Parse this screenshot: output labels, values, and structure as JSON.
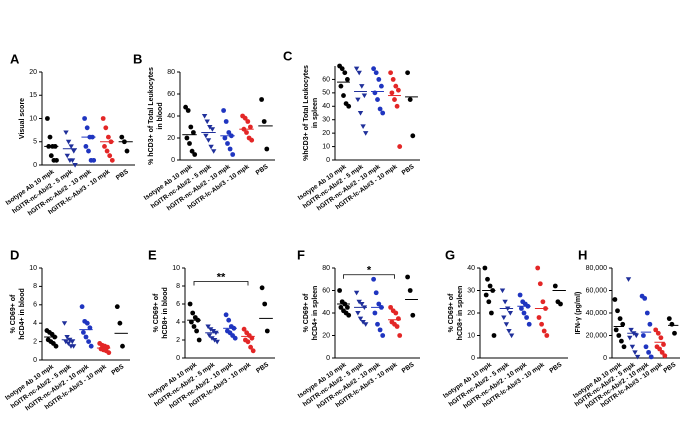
{
  "chart_data": [
    {
      "type": "dot",
      "label": "A",
      "ylabel": [
        "Visual score"
      ],
      "categories": [
        "Isotype Ab 10 mpk",
        "hGITR-nc-Ab#2 - 5 mpk",
        "hGITR-nc-Ab#2 - 10 mpk",
        "hGITR-lc-Ab#3 - 10 mpk",
        "PBS"
      ],
      "colors": [
        "#000000",
        "#1f2f9a",
        "#1f35c0",
        "#e32626",
        "#000000"
      ],
      "markers": [
        "circle",
        "triangle",
        "circle",
        "circle",
        "circle"
      ],
      "values": [
        [
          10,
          6,
          4,
          4,
          4,
          2,
          1,
          1
        ],
        [
          7,
          5,
          4,
          3,
          2,
          1,
          1,
          0
        ],
        [
          10,
          8,
          6,
          6,
          4,
          3,
          1,
          1
        ],
        [
          10,
          8,
          6,
          5,
          4,
          3,
          2,
          1
        ],
        [
          6,
          5,
          3
        ]
      ],
      "means": [
        4,
        3.5,
        6,
        5,
        5
      ],
      "ylim": [
        0,
        20
      ],
      "yticks": [
        0,
        5,
        10,
        15,
        20
      ]
    },
    {
      "type": "dot",
      "label": "B",
      "ylabel": [
        "% hCD3+ of Total Leukocytes",
        "in blood"
      ],
      "categories": [
        "Isotype Ab 10 mpk",
        "hGITR-nc-Ab#2 - 5 mpk",
        "hGITR-nc-Ab#2 - 10 mpk",
        "hGITR-lc-Ab#3 - 10 mpk",
        "PBS"
      ],
      "colors": [
        "#000000",
        "#1f2f9a",
        "#1f35c0",
        "#e32626",
        "#000000"
      ],
      "markers": [
        "circle",
        "triangle",
        "circle",
        "circle",
        "circle"
      ],
      "values": [
        [
          48,
          45,
          30,
          25,
          20,
          15,
          8,
          5
        ],
        [
          40,
          35,
          30,
          28,
          22,
          18,
          12,
          8
        ],
        [
          45,
          35,
          25,
          22,
          20,
          15,
          10,
          5
        ],
        [
          40,
          38,
          35,
          30,
          28,
          25,
          20,
          18
        ],
        [
          55,
          35,
          10
        ]
      ],
      "means": [
        23,
        25,
        22,
        28,
        31
      ],
      "ylim": [
        0,
        80
      ],
      "yticks": [
        0,
        20,
        40,
        60,
        80
      ]
    },
    {
      "type": "dot",
      "label": "C",
      "ylabel": [
        "%hCD3+ of Total Leukocytes",
        "in spleen"
      ],
      "categories": [
        "Isotype Ab 10 mpk",
        "hGITR-nc-Ab#2 - 5 mpk",
        "hGITR-nc-Ab#2 - 10 mpk",
        "hGITR-lc-Ab#3 - 10 mpk",
        "PBS"
      ],
      "colors": [
        "#000000",
        "#1f2f9a",
        "#1f35c0",
        "#e32626",
        "#000000"
      ],
      "markers": [
        "circle",
        "triangle",
        "circle",
        "circle",
        "circle"
      ],
      "values": [
        [
          70,
          68,
          65,
          60,
          55,
          48,
          42,
          40
        ],
        [
          68,
          65,
          55,
          48,
          45,
          35,
          25,
          20
        ],
        [
          68,
          65,
          60,
          55,
          50,
          45,
          38,
          35
        ],
        [
          65,
          60,
          55,
          52,
          50,
          45,
          40,
          10
        ],
        [
          65,
          45,
          18
        ]
      ],
      "means": [
        58,
        51,
        51,
        48,
        47
      ],
      "ylim": [
        0,
        70
      ],
      "yticks": [
        0,
        10,
        20,
        30,
        40,
        50,
        60
      ]
    },
    {
      "type": "dot",
      "label": "D",
      "ylabel": [
        "% CD69+ of",
        "hCD4+ in blood"
      ],
      "categories": [
        "Isotype Ab 10 mpk",
        "hGITR-nc-Ab#2 - 5 mpk",
        "hGITR-nc-Ab#2 - 10 mpk",
        "hGITR-lc-Ab#3 - 10 mpk",
        "PBS"
      ],
      "colors": [
        "#000000",
        "#1f2f9a",
        "#1f35c0",
        "#e32626",
        "#000000"
      ],
      "markers": [
        "circle",
        "triangle",
        "circle",
        "circle",
        "circle"
      ],
      "values": [
        [
          3.2,
          3,
          2.8,
          2.5,
          2.2,
          2,
          1.8,
          1.5
        ],
        [
          4,
          2.5,
          2.2,
          2,
          2,
          1.8,
          1.5,
          1.5
        ],
        [
          5.8,
          4.2,
          4,
          3.5,
          3,
          2.5,
          2,
          1.5
        ],
        [
          1.8,
          1.6,
          1.5,
          1.4,
          1.2,
          1.1,
          1,
          0.8
        ],
        [
          5.8,
          4,
          1.5
        ]
      ],
      "means": [
        2.5,
        2.2,
        3.3,
        1.3,
        2.9
      ],
      "ylim": [
        0,
        10
      ],
      "yticks": [
        0,
        2,
        4,
        6,
        8,
        10
      ]
    },
    {
      "type": "dot",
      "label": "E",
      "ylabel": [
        "% CD69+ of",
        "hCD8+ in blood"
      ],
      "categories": [
        "Isotype Ab 10 mpk",
        "hGITR-nc-Ab#2 - 5 mpk",
        "hGITR-nc-Ab#2 - 10 mpk",
        "hGITR-lc-Ab#3 - 10 mpk",
        "PBS"
      ],
      "colors": [
        "#000000",
        "#1f2f9a",
        "#1f35c0",
        "#e32626",
        "#000000"
      ],
      "markers": [
        "circle",
        "triangle",
        "circle",
        "circle",
        "circle"
      ],
      "values": [
        [
          6,
          5,
          4.5,
          4.2,
          4,
          3.5,
          3,
          2
        ],
        [
          3.5,
          3.2,
          3,
          2.8,
          2.5,
          2.2,
          2,
          1.8
        ],
        [
          4.8,
          4.2,
          3.5,
          3.3,
          3,
          2.8,
          2.5,
          2.2
        ],
        [
          3.2,
          2.8,
          2.5,
          2.2,
          2,
          1.8,
          1.2,
          0.8
        ],
        [
          7.8,
          6,
          3
        ]
      ],
      "means": [
        4.2,
        2.8,
        3.3,
        2.4,
        4.4
      ],
      "ylim": [
        0,
        10
      ],
      "yticks": [
        0,
        2,
        4,
        6,
        8,
        10
      ],
      "significance": {
        "text": "**",
        "from": 0,
        "to": 3,
        "y": 8.5
      }
    },
    {
      "type": "dot",
      "label": "F",
      "ylabel": [
        "% CD69+ of",
        "hCD4+ in spleen"
      ],
      "categories": [
        "Isotype Ab 10 mpk",
        "hGITR-nc-Ab#2 - 5 mpk",
        "hGITR-nc-Ab#2 - 10 mpk",
        "hGITR-lc-Ab#3 - 10 mpk",
        "PBS"
      ],
      "colors": [
        "#000000",
        "#1f2f9a",
        "#1f35c0",
        "#e32626",
        "#000000"
      ],
      "markers": [
        "circle",
        "triangle",
        "circle",
        "circle",
        "circle"
      ],
      "values": [
        [
          60,
          50,
          48,
          45,
          45,
          42,
          40,
          38
        ],
        [
          58,
          50,
          48,
          45,
          40,
          35,
          32,
          30
        ],
        [
          70,
          58,
          48,
          45,
          40,
          30,
          25,
          20
        ],
        [
          45,
          42,
          40,
          35,
          32,
          30,
          28,
          20
        ],
        [
          72,
          60,
          38
        ]
      ],
      "means": [
        48,
        45,
        45,
        34,
        52
      ],
      "ylim": [
        0,
        80
      ],
      "yticks": [
        0,
        20,
        40,
        60,
        80
      ],
      "significance": {
        "text": "*",
        "from": 0,
        "to": 3,
        "y": 74
      }
    },
    {
      "type": "dot",
      "label": "G",
      "ylabel": [
        "% CD69+ of",
        "hCD8+ in spleen"
      ],
      "categories": [
        "Isotype Ab 10 mpk",
        "hGITR-nc-Ab#2 - 5 mpk",
        "hGITR-nc-Ab#2 - 10 mpk",
        "hGITR-lc-Ab#3 - 10 mpk",
        "PBS"
      ],
      "colors": [
        "#000000",
        "#1f2f9a",
        "#1f35c0",
        "#e32626",
        "#000000"
      ],
      "markers": [
        "circle",
        "triangle",
        "circle",
        "circle",
        "circle"
      ],
      "values": [
        [
          40,
          35,
          32,
          30,
          28,
          25,
          20,
          10
        ],
        [
          30,
          25,
          22,
          20,
          18,
          15,
          12,
          10
        ],
        [
          28,
          25,
          24,
          23,
          22,
          20,
          18,
          15
        ],
        [
          40,
          33,
          25,
          22,
          18,
          15,
          12,
          10
        ],
        [
          32,
          25,
          24
        ]
      ],
      "means": [
        30,
        22,
        23,
        22,
        30
      ],
      "ylim": [
        0,
        40
      ],
      "yticks": [
        0,
        10,
        20,
        30,
        40
      ]
    },
    {
      "type": "dot",
      "label": "H",
      "ylabel": [
        "IFN-γ (pg/ml)"
      ],
      "categories": [
        "Isotype Ab 10 mpk",
        "hGITR-nc-Ab#2 - 5 mpk",
        "hGITR-nc-Ab#2 - 10 mpk",
        "hGITR-lc-Ab#3 - 10 mpk",
        "PBS"
      ],
      "colors": [
        "#000000",
        "#1f2f9a",
        "#1f35c0",
        "#e32626",
        "#000000"
      ],
      "markers": [
        "circle",
        "triangle",
        "circle",
        "circle",
        "circle"
      ],
      "values": [
        [
          52000,
          42000,
          35000,
          30000,
          25000,
          20000,
          15000,
          10000
        ],
        [
          70000,
          25000,
          22000,
          20000,
          18000,
          10000,
          5000,
          1000
        ],
        [
          55000,
          53000,
          40000,
          30000,
          20000,
          10000,
          5000,
          1000
        ],
        [
          25000,
          22000,
          18000,
          12000,
          10000,
          8000,
          5000,
          2000
        ],
        [
          35000,
          30000,
          22000
        ]
      ],
      "means": [
        28000,
        22000,
        23000,
        14000,
        29000
      ],
      "ylim": [
        0,
        80000
      ],
      "yticks": [
        0,
        {
          "value": 20000,
          "label": "20,000"
        },
        {
          "value": 40000,
          "label": "40,000"
        },
        {
          "value": 60000,
          "label": "60,000"
        },
        {
          "value": 80000,
          "label": "80,000"
        }
      ]
    }
  ]
}
